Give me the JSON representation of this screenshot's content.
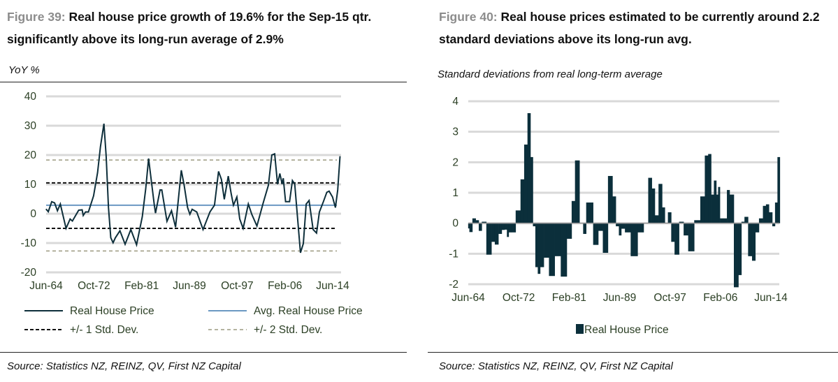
{
  "figures": [
    {
      "label": "Figure 39:",
      "title": " Real house price growth of 19.6% for the Sep-15 qtr. significantly above its long-run average of 2.9%",
      "unit": "YoY %",
      "source": "Source: Statistics NZ, REINZ, QV, First NZ Capital"
    },
    {
      "label": "Figure 40:",
      "title": " Real house prices estimated to be currently around 2.2 standard deviations above its long-run avg.",
      "unit": "Standard deviations from real long-term average",
      "source": "Source: Statistics NZ, REINZ, QV, First NZ Capital"
    }
  ],
  "chart_data": [
    {
      "type": "line",
      "ylabel": "YoY %",
      "ylim": [
        -20,
        40
      ],
      "yticks": [
        "40",
        "30",
        "20",
        "10",
        "0",
        "-10",
        "-20"
      ],
      "xticks": [
        "Jun-64",
        "Oct-72",
        "Feb-81",
        "Jun-89",
        "Oct-97",
        "Feb-06",
        "Jun-14"
      ],
      "grid": true,
      "legend_placement": "bottom",
      "colors": {
        "line": "#0d2e3a",
        "avg": "#6b98c2",
        "sd1": "#111111",
        "sd2": "#9c9a80",
        "grid": "#d9d9d9"
      },
      "series": [
        {
          "name": "Real House Price",
          "x": [
            1964.4,
            1964.8,
            1965.4,
            1965.9,
            1966.4,
            1966.9,
            1967.9,
            1968.6,
            1969.0,
            1969.8,
            1970.1,
            1970.7,
            1970.9,
            1971.3,
            1971.8,
            1972.7,
            1973.4,
            1973.9,
            1974.5,
            1974.9,
            1975.3,
            1975.7,
            1976.1,
            1976.5,
            1977.3,
            1978.2,
            1979.2,
            1980.2,
            1981.2,
            1981.8,
            1982.3,
            1983.3,
            1983.5,
            1984.3,
            1984.6,
            1985.5,
            1986.3,
            1987.0,
            1988.0,
            1988.5,
            1989.1,
            1989.5,
            1989.9,
            1990.7,
            1991.8,
            1993.0,
            1993.8,
            1994.5,
            1995.0,
            1995.5,
            1996.2,
            1996.7,
            1997.1,
            1997.7,
            1998.2,
            1998.8,
            1999.7,
            2000.3,
            2001.2,
            2002.3,
            2003.2,
            2003.8,
            2004.3,
            2004.8,
            2005.2,
            2005.6,
            2005.8,
            2006.2,
            2006.9,
            2007.4,
            2007.8,
            2008.8,
            2009.3,
            2009.8,
            2010.3,
            2011.0,
            2011.6,
            2012.1,
            2012.8,
            2013.4,
            2013.8,
            2014.4,
            2014.9,
            2015.3,
            2015.7
          ],
          "y": [
            1.6,
            0.7,
            4.1,
            3.7,
            1.0,
            3.3,
            -5.0,
            -1.8,
            -2.5,
            0.2,
            1.2,
            1.3,
            -0.6,
            0.6,
            0.6,
            6.1,
            14,
            22.8,
            30.7,
            19.6,
            2.1,
            -8.2,
            -9.9,
            -8.2,
            -5.8,
            -10.4,
            -5.4,
            -10.6,
            -1.0,
            8.5,
            18.8,
            2.9,
            0.2,
            8.1,
            8.1,
            -2.6,
            1.0,
            -4.6,
            14.8,
            9.7,
            2.1,
            -0.2,
            1.5,
            0.6,
            -5.4,
            0.6,
            2.9,
            14.4,
            11.7,
            4.9,
            12.8,
            6.9,
            2.9,
            5.7,
            -1.8,
            -5.0,
            3.3,
            -0.2,
            -4.2,
            3.7,
            9.7,
            20,
            20.4,
            10.1,
            13.7,
            10.1,
            12.1,
            4.1,
            4.1,
            11.3,
            10.1,
            -13.3,
            -10.2,
            3.3,
            4.5,
            -5.4,
            -6.6,
            0.6,
            4.1,
            7.3,
            7.7,
            5.7,
            2.1,
            8.1,
            19.6
          ]
        },
        {
          "name": "Avg. Real House Price",
          "value": 2.9
        },
        {
          "name": "+/- 1 Std. Dev.",
          "values": [
            10.5,
            -5.0
          ]
        },
        {
          "name": "+/- 2 Std. Dev.",
          "values": [
            18.3,
            -12.7
          ]
        }
      ]
    },
    {
      "type": "bar",
      "ylabel": "Standard deviations from real long-term average",
      "ylim": [
        -2,
        4
      ],
      "yticks": [
        "4",
        "3",
        "2",
        "1",
        "0",
        "-1",
        "-2"
      ],
      "xticks": [
        "Jun-64",
        "Oct-72",
        "Feb-81",
        "Jun-89",
        "Oct-97",
        "Feb-06",
        "Jun-14"
      ],
      "grid": true,
      "legend_placement": "bottom",
      "colors": {
        "bar": "#0b2f3b",
        "grid": "#d9d9d9",
        "axis": "#9a9a9a"
      },
      "series": [
        {
          "name": "Real House Price",
          "x": [
            1964.4,
            1964.8,
            1965.4,
            1965.9,
            1966.4,
            1966.9,
            1967.9,
            1968.6,
            1969.0,
            1969.8,
            1970.1,
            1970.7,
            1970.9,
            1971.3,
            1971.8,
            1972.7,
            1973.4,
            1973.9,
            1974.5,
            1974.9,
            1975.3,
            1975.7,
            1976.1,
            1976.5,
            1977.3,
            1978.2,
            1979.2,
            1980.2,
            1981.2,
            1981.8,
            1982.3,
            1983.3,
            1983.5,
            1984.3,
            1984.6,
            1985.5,
            1986.3,
            1987.0,
            1988.0,
            1988.5,
            1989.1,
            1989.5,
            1989.9,
            1990.7,
            1991.8,
            1993.0,
            1993.8,
            1994.5,
            1995.0,
            1995.5,
            1996.2,
            1996.7,
            1997.1,
            1997.7,
            1998.2,
            1998.8,
            1999.7,
            2000.3,
            2001.2,
            2002.3,
            2003.2,
            2003.8,
            2004.3,
            2004.8,
            2005.2,
            2005.6,
            2005.8,
            2006.2,
            2006.9,
            2007.4,
            2007.8,
            2008.8,
            2009.3,
            2009.8,
            2010.3,
            2011.0,
            2011.6,
            2012.1,
            2012.8,
            2013.4,
            2013.8,
            2014.4,
            2014.9,
            2015.3,
            2015.7
          ],
          "y": [
            -0.17,
            -0.29,
            0.16,
            0.1,
            -0.25,
            0.05,
            -1.03,
            -0.61,
            -0.7,
            -0.35,
            -0.22,
            -0.21,
            -0.45,
            -0.3,
            -0.3,
            0.42,
            1.44,
            2.58,
            3.61,
            2.17,
            -0.1,
            -1.44,
            -1.66,
            -1.44,
            -1.13,
            -1.73,
            -1.08,
            -1.75,
            -0.51,
            0.73,
            2.06,
            0,
            -0.35,
            0.68,
            0.68,
            -0.71,
            -0.25,
            -0.97,
            1.55,
            0.88,
            -0.1,
            -0.4,
            -0.18,
            -0.3,
            -1.08,
            -0.3,
            0,
            1.49,
            1.14,
            0.26,
            1.29,
            0.52,
            0,
            0.36,
            -0.61,
            -1.03,
            0.05,
            -0.4,
            -0.92,
            0.1,
            0.88,
            2.22,
            2.27,
            0.94,
            1.4,
            0.94,
            1.19,
            0.16,
            0.16,
            1.09,
            0.94,
            -2.1,
            -1.7,
            0.05,
            0.21,
            -1.08,
            -1.23,
            -0.3,
            0.16,
            0.57,
            0.62,
            0.36,
            -0.1,
            0.68,
            2.17
          ]
        }
      ]
    }
  ]
}
